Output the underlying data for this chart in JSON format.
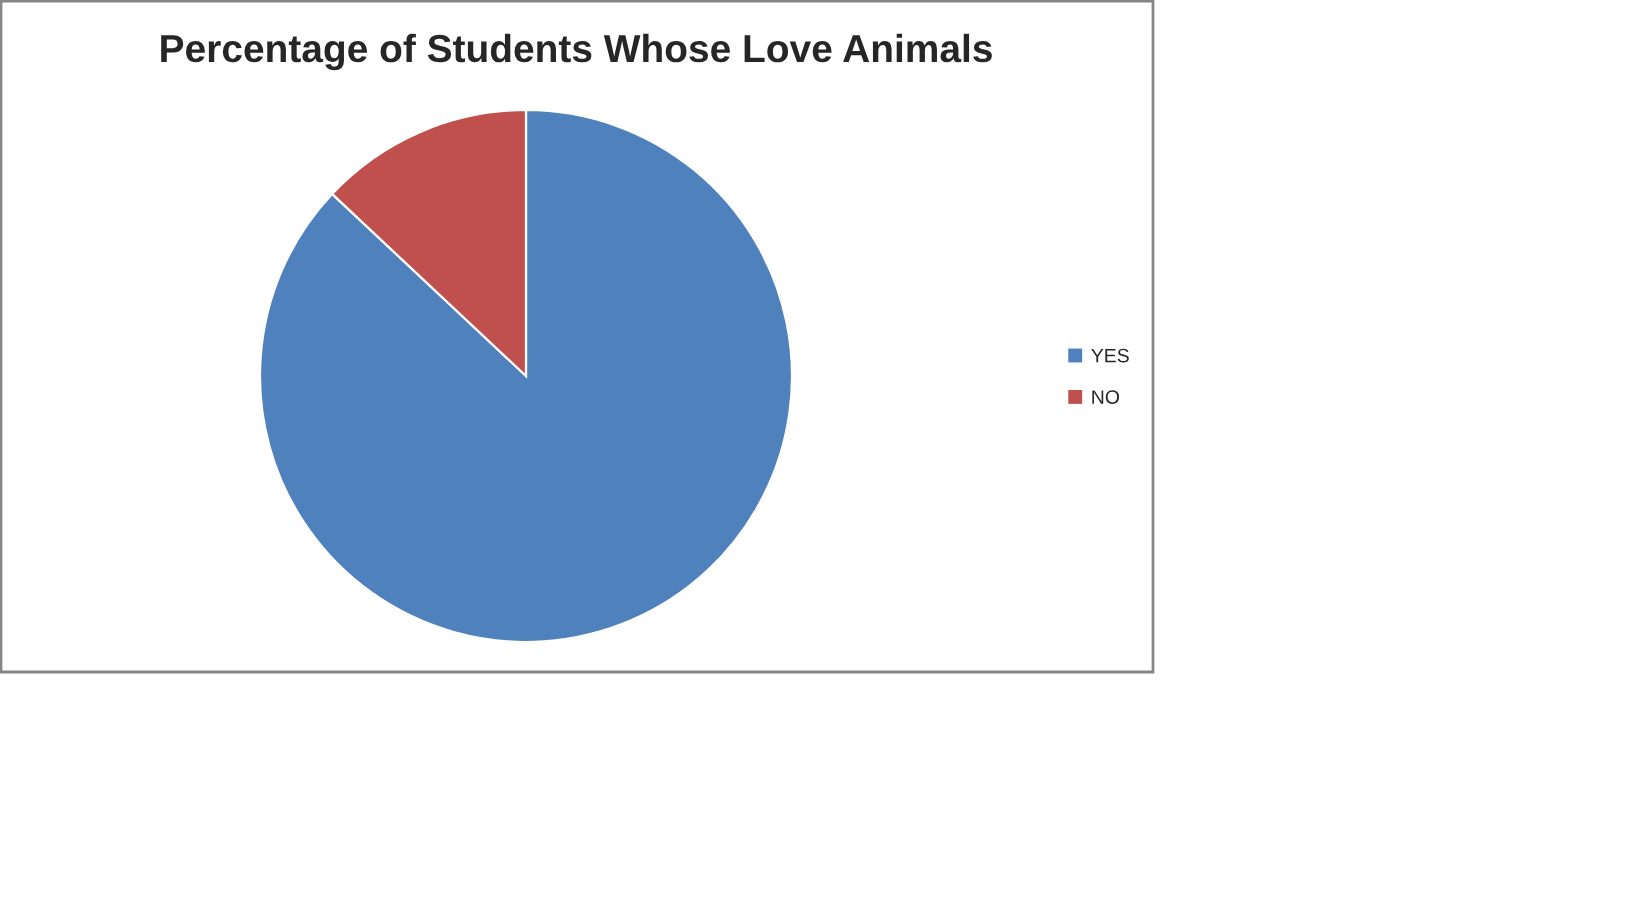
{
  "chart_data": {
    "type": "pie",
    "title": "Percentage of Students Whose Love Animals",
    "categories": [
      "YES",
      "NO"
    ],
    "values": [
      87,
      13
    ],
    "colors": [
      "#4f81bd",
      "#c0504d"
    ],
    "legend": "right"
  }
}
